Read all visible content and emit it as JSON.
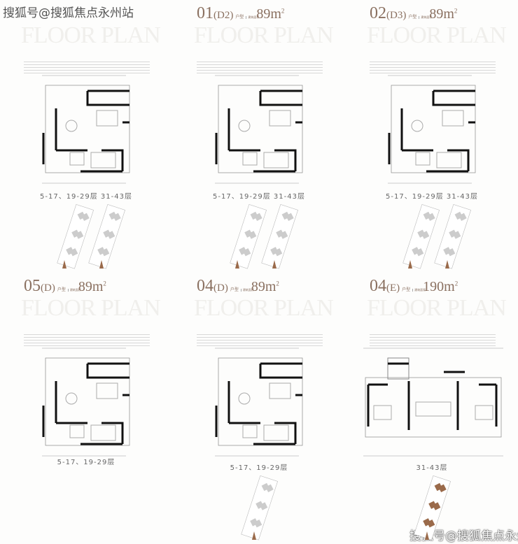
{
  "watermark_top": "搜狐号@搜狐焦点永州站",
  "watermark_bottom": "搜狐号@搜狐焦点永州站",
  "floor_plan_label": "FLOOR PLAN",
  "unit_label": "户型",
  "area_label": "建筑面积",
  "panels": [
    {
      "code": "",
      "variant": "",
      "area": "",
      "floors": "5-17、19-29层   31-43层",
      "site_count": 2
    },
    {
      "code": "01",
      "variant": "(D2)",
      "area": "89m",
      "floors": "5-17、19-29层   31-43层",
      "site_count": 2
    },
    {
      "code": "02",
      "variant": "(D3)",
      "area": "89m",
      "floors": "5-17、19-29层   31-43层",
      "site_count": 2
    },
    {
      "code": "05",
      "variant": "(D)",
      "area": "89m",
      "floors": "5-17、19-29层",
      "site_count": 0
    },
    {
      "code": "04",
      "variant": "(D)",
      "area": "89m",
      "floors": "5-17、19-29层",
      "site_count": 1
    },
    {
      "code": "04",
      "variant": "(E)",
      "area": "190m",
      "floors": "31-43层",
      "site_count": 1
    }
  ],
  "colors": {
    "title": "#8a7060",
    "wall": "#111111",
    "highlight": "#9a6a4a"
  }
}
